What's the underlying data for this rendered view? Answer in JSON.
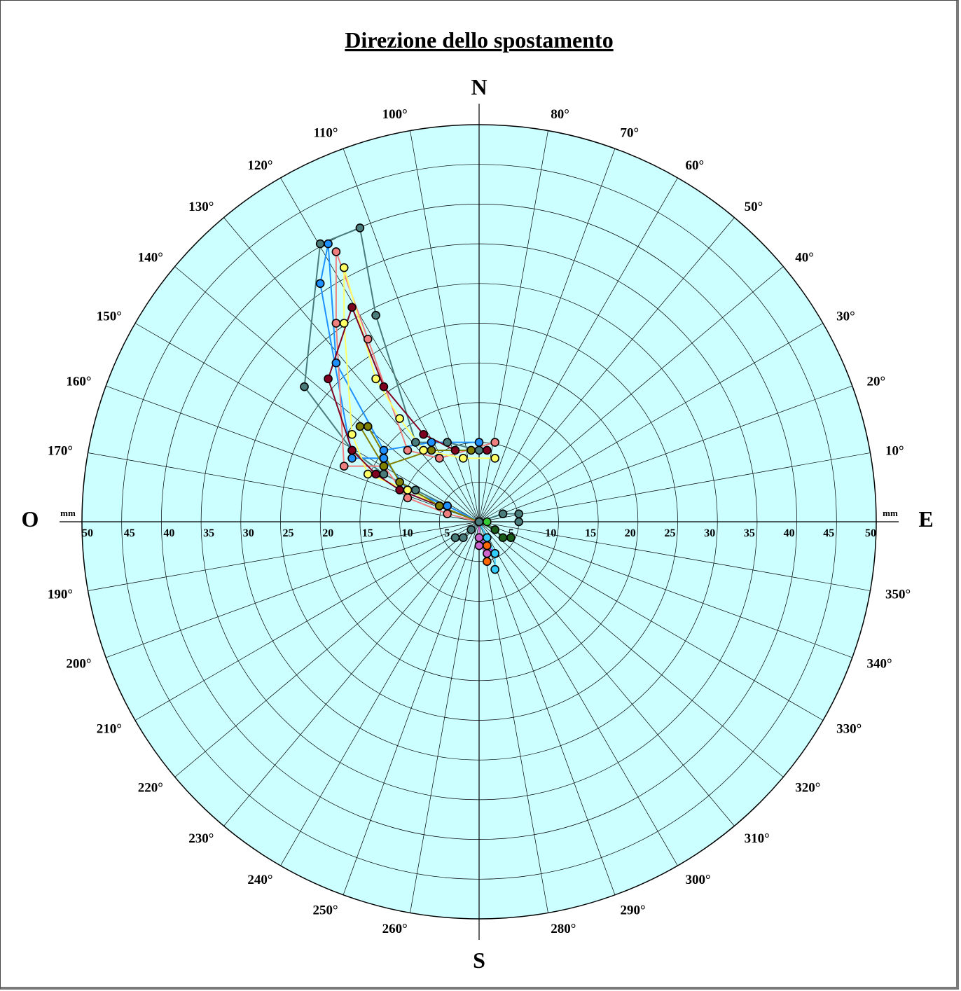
{
  "chart_data": {
    "type": "polar-scatter",
    "title": "Direzione dello spostamento",
    "cardinals": {
      "north": "N",
      "south": "S",
      "east": "E",
      "west": "O"
    },
    "radial_unit": "mm",
    "radial_range": [
      0,
      50
    ],
    "radial_step": 5,
    "radial_tick_labels": [
      "5",
      "10",
      "15",
      "20",
      "25",
      "30",
      "35",
      "40",
      "45",
      "50"
    ],
    "angle_step_degrees": 10,
    "angle_labels": [
      "10°",
      "20°",
      "30°",
      "40°",
      "50°",
      "60°",
      "70°",
      "80°",
      "100°",
      "110°",
      "120°",
      "130°",
      "140°",
      "150°",
      "160°",
      "170°",
      "190°",
      "200°",
      "210°",
      "220°",
      "230°",
      "240°",
      "250°",
      "260°",
      "280°",
      "290°",
      "300°",
      "310°",
      "320°",
      "330°",
      "340°",
      "350°"
    ],
    "plot_background": "#ccffff",
    "grid": true,
    "series": [
      {
        "color": "#4a7c7c",
        "points": [
          [
            0,
            0
          ],
          [
            -4,
            2
          ],
          [
            -8,
            4
          ],
          [
            -12,
            6
          ],
          [
            -16,
            9
          ],
          [
            -22,
            17
          ],
          [
            -20,
            35
          ],
          [
            -15,
            37
          ],
          [
            -13,
            26
          ],
          [
            -8,
            10
          ],
          [
            -4,
            10
          ],
          [
            0,
            9
          ]
        ]
      },
      {
        "color": "#1e90ff",
        "points": [
          [
            0,
            0
          ],
          [
            -4,
            2
          ],
          [
            -9,
            4
          ],
          [
            -12,
            8
          ],
          [
            -16,
            8
          ],
          [
            -20,
            30
          ],
          [
            -19,
            35
          ],
          [
            -18,
            20
          ],
          [
            -12,
            9
          ],
          [
            -6,
            10
          ],
          [
            0,
            10
          ]
        ]
      },
      {
        "color": "#f08080",
        "points": [
          [
            0,
            0
          ],
          [
            -4,
            1
          ],
          [
            -9,
            3
          ],
          [
            -12,
            7
          ],
          [
            -17,
            7
          ],
          [
            -18,
            25
          ],
          [
            -18,
            34
          ],
          [
            -14,
            23
          ],
          [
            -9,
            9
          ],
          [
            -5,
            8
          ],
          [
            2,
            10
          ]
        ]
      },
      {
        "color": "#ffff66",
        "points": [
          [
            0,
            0
          ],
          [
            -5,
            2
          ],
          [
            -9,
            4
          ],
          [
            -14,
            6
          ],
          [
            -16,
            11
          ],
          [
            -17,
            25
          ],
          [
            -17,
            32
          ],
          [
            -13,
            18
          ],
          [
            -10,
            13
          ],
          [
            -7,
            9
          ],
          [
            -2,
            8
          ],
          [
            2,
            8
          ]
        ]
      },
      {
        "color": "#800020",
        "points": [
          [
            0,
            0
          ],
          [
            -5,
            2
          ],
          [
            -10,
            4
          ],
          [
            -13,
            6
          ],
          [
            -16,
            9
          ],
          [
            -19,
            18
          ],
          [
            -16,
            27
          ],
          [
            -12,
            17
          ],
          [
            -7,
            11
          ],
          [
            -3,
            9
          ],
          [
            1,
            9
          ]
        ]
      },
      {
        "color": "#808000",
        "points": [
          [
            0,
            0
          ],
          [
            -5,
            2
          ],
          [
            -10,
            5
          ],
          [
            -14,
            12
          ],
          [
            -15,
            12
          ],
          [
            -12,
            7
          ],
          [
            -6,
            9
          ],
          [
            -1,
            9
          ]
        ]
      },
      {
        "color": "#8a2be2",
        "points": [
          [
            0,
            0
          ],
          [
            0,
            -2
          ],
          [
            1,
            -3
          ],
          [
            2,
            -4
          ]
        ]
      },
      {
        "color": "#cc66cc",
        "points": [
          [
            0,
            0
          ],
          [
            0,
            -2
          ],
          [
            0,
            -3
          ],
          [
            1,
            -4
          ]
        ]
      },
      {
        "color": "#ff6600",
        "points": [
          [
            0,
            0
          ],
          [
            1,
            -2
          ],
          [
            1,
            -3
          ],
          [
            1,
            -5
          ]
        ]
      },
      {
        "color": "#33ccff",
        "points": [
          [
            0,
            0
          ],
          [
            1,
            -2
          ],
          [
            2,
            -4
          ],
          [
            2,
            -6
          ]
        ]
      },
      {
        "color": "#1a5c1a",
        "points": [
          [
            0,
            0
          ],
          [
            2,
            -1
          ],
          [
            3,
            -2
          ],
          [
            4,
            -2
          ]
        ]
      },
      {
        "color": "#33cc33",
        "points": [
          [
            1,
            0
          ]
        ]
      },
      {
        "color": "#4a7c7c",
        "points": [
          [
            0,
            0
          ],
          [
            3,
            1
          ],
          [
            5,
            1
          ],
          [
            5,
            0
          ]
        ]
      },
      {
        "color": "#4a7c7c",
        "points": [
          [
            0,
            0
          ],
          [
            -1,
            -1
          ],
          [
            -2,
            -2
          ],
          [
            -3,
            -2
          ]
        ]
      }
    ]
  }
}
